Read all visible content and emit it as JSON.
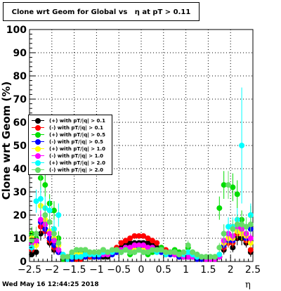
{
  "title": "Clone wrt Geom for Global vs   η at pT > 0.11",
  "footer": {
    "date": "Wed May 16 12:44:25 2018"
  },
  "chart_data": {
    "type": "scatter",
    "title": "Clone wrt Geom for Global vs   η at pT > 0.11",
    "xlabel": "η",
    "ylabel": "Clone wrt Geom (%)",
    "xlim": [
      -2.5,
      2.5
    ],
    "ylim": [
      0,
      100
    ],
    "x_ticks": [
      "−2.5",
      "−2",
      "−1.5",
      "−1",
      "−0.5",
      "0",
      "0.5",
      "1",
      "1.5",
      "2",
      "2.5"
    ],
    "y_ticks": [
      "0",
      "10",
      "20",
      "30",
      "40",
      "50",
      "60",
      "70",
      "80",
      "90",
      "100"
    ],
    "grid": true,
    "legend_position": "left",
    "series": [
      {
        "name": "(+) with pT/|q| > 0.1",
        "color": "#000000",
        "x": [
          -2.45,
          -2.35,
          -2.25,
          -2.15,
          -2.05,
          -1.95,
          -1.85,
          -1.75,
          -1.65,
          -1.55,
          -1.45,
          -1.35,
          -1.25,
          -1.15,
          -1.05,
          -0.95,
          -0.85,
          -0.75,
          -0.65,
          -0.55,
          -0.45,
          -0.35,
          -0.25,
          -0.15,
          -0.05,
          0.05,
          0.15,
          0.25,
          0.35,
          0.45,
          0.55,
          0.65,
          0.75,
          0.85,
          0.95,
          1.05,
          1.15,
          1.25,
          1.35,
          1.45,
          1.55,
          1.65,
          1.75,
          1.85,
          1.95,
          2.05,
          2.15,
          2.25,
          2.35,
          2.45
        ],
        "y": [
          3,
          4,
          12,
          14,
          8,
          5,
          4,
          1,
          1,
          1,
          1,
          1,
          2,
          2,
          2,
          2,
          2,
          2,
          3,
          4,
          6,
          7,
          8,
          8,
          8,
          8,
          8,
          7,
          6,
          5,
          4,
          3,
          3,
          2,
          2,
          2,
          2,
          1,
          1,
          1,
          1,
          1,
          2,
          5,
          8,
          6,
          10,
          10,
          8,
          4
        ],
        "err": [
          1,
          2,
          3,
          3,
          2,
          2,
          1,
          1,
          1,
          1,
          1,
          1,
          1,
          1,
          1,
          1,
          1,
          1,
          1,
          1,
          1,
          1,
          1,
          1,
          1,
          1,
          1,
          1,
          1,
          1,
          1,
          1,
          1,
          1,
          1,
          1,
          1,
          1,
          1,
          1,
          1,
          1,
          1,
          2,
          2,
          2,
          3,
          3,
          2,
          2
        ]
      },
      {
        "name": "(-) with pT/|q| > 0.1",
        "color": "#ff0000",
        "x": [
          -2.45,
          -2.35,
          -2.25,
          -2.15,
          -2.05,
          -1.95,
          -1.85,
          -1.75,
          -1.65,
          -1.55,
          -1.45,
          -1.35,
          -1.25,
          -1.15,
          -1.05,
          -0.95,
          -0.85,
          -0.75,
          -0.65,
          -0.55,
          -0.45,
          -0.35,
          -0.25,
          -0.15,
          -0.05,
          0.05,
          0.15,
          0.25,
          0.35,
          0.45,
          0.55,
          0.65,
          0.75,
          0.85,
          0.95,
          1.05,
          1.15,
          1.25,
          1.35,
          1.45,
          1.55,
          1.65,
          1.75,
          1.85,
          1.95,
          2.05,
          2.15,
          2.25,
          2.35,
          2.45
        ],
        "y": [
          5,
          8,
          15,
          13,
          9,
          6,
          4,
          2,
          1,
          1,
          1,
          1,
          2,
          2,
          2,
          2,
          3,
          3,
          4,
          6,
          8,
          9,
          10,
          11,
          11,
          11,
          10,
          9,
          8,
          6,
          5,
          4,
          3,
          2,
          2,
          2,
          2,
          1,
          1,
          1,
          1,
          1,
          2,
          6,
          8,
          8,
          12,
          12,
          9,
          5
        ],
        "err": [
          1,
          2,
          3,
          3,
          2,
          2,
          1,
          1,
          1,
          1,
          1,
          1,
          1,
          1,
          1,
          1,
          1,
          1,
          1,
          1,
          1,
          1,
          1,
          1,
          1,
          1,
          1,
          1,
          1,
          1,
          1,
          1,
          1,
          1,
          1,
          1,
          1,
          1,
          1,
          1,
          1,
          1,
          1,
          2,
          2,
          2,
          3,
          3,
          2,
          2
        ]
      },
      {
        "name": "(+) with pT/|q| > 0.5",
        "color": "#00dd00",
        "x": [
          -2.45,
          -2.35,
          -2.25,
          -2.15,
          -2.05,
          -1.95,
          -1.85,
          -1.75,
          -1.65,
          -1.55,
          -1.45,
          -1.35,
          -1.25,
          -1.15,
          -1.05,
          -0.95,
          -0.85,
          -0.75,
          -0.65,
          -0.55,
          -0.45,
          -0.35,
          -0.25,
          -0.15,
          -0.05,
          0.05,
          0.15,
          0.25,
          0.35,
          0.45,
          0.55,
          0.65,
          0.75,
          0.85,
          0.95,
          1.05,
          1.15,
          1.25,
          1.35,
          1.45,
          1.55,
          1.65,
          1.75,
          1.85,
          1.95,
          2.05,
          2.15,
          2.25,
          2.35,
          2.45
        ],
        "y": [
          12,
          10,
          36,
          33,
          25,
          22,
          10,
          1,
          2,
          3,
          5,
          4,
          5,
          4,
          3,
          4,
          5,
          3,
          4,
          5,
          4,
          5,
          3,
          4,
          5,
          4,
          3,
          4,
          5,
          6,
          3,
          4,
          5,
          4,
          3,
          6,
          4,
          3,
          2,
          2,
          2,
          2,
          23,
          33,
          10,
          32,
          29,
          18,
          12,
          20
        ],
        "err": [
          3,
          3,
          5,
          5,
          4,
          4,
          3,
          1,
          1,
          1,
          1,
          1,
          1,
          1,
          1,
          1,
          1,
          1,
          1,
          1,
          1,
          1,
          1,
          1,
          1,
          1,
          1,
          1,
          1,
          1,
          1,
          1,
          1,
          1,
          1,
          2,
          1,
          1,
          1,
          1,
          1,
          1,
          5,
          6,
          3,
          6,
          6,
          4,
          3,
          4
        ]
      },
      {
        "name": "(-) with pT/|q| > 0.5",
        "color": "#0000ff",
        "x": [
          -2.45,
          -2.35,
          -2.25,
          -2.15,
          -2.05,
          -1.95,
          -1.85,
          -1.75,
          -1.65,
          -1.55,
          -1.45,
          -1.35,
          -1.25,
          -1.15,
          -1.05,
          -0.95,
          -0.85,
          -0.75,
          -0.65,
          -0.55,
          -0.45,
          -0.35,
          -0.25,
          -0.15,
          -0.05,
          0.05,
          0.15,
          0.25,
          0.35,
          0.45,
          0.55,
          0.65,
          0.75,
          0.85,
          0.95,
          1.05,
          1.15,
          1.25,
          1.35,
          1.45,
          1.55,
          1.65,
          1.75,
          1.85,
          1.95,
          2.05,
          2.15,
          2.25,
          2.35,
          2.45
        ],
        "y": [
          6,
          8,
          17,
          14,
          10,
          7,
          4,
          2,
          1,
          1,
          2,
          2,
          2,
          3,
          2,
          2,
          3,
          3,
          3,
          4,
          5,
          5,
          6,
          6,
          6,
          6,
          6,
          5,
          5,
          4,
          3,
          3,
          3,
          2,
          2,
          2,
          2,
          1,
          1,
          1,
          1,
          1,
          2,
          7,
          9,
          9,
          13,
          14,
          10,
          14
        ],
        "err": [
          2,
          2,
          3,
          3,
          2,
          2,
          1,
          1,
          1,
          1,
          1,
          1,
          1,
          1,
          1,
          1,
          1,
          1,
          1,
          1,
          1,
          1,
          1,
          1,
          1,
          1,
          1,
          1,
          1,
          1,
          1,
          1,
          1,
          1,
          1,
          1,
          1,
          1,
          1,
          1,
          1,
          1,
          1,
          2,
          2,
          2,
          3,
          3,
          2,
          3
        ]
      },
      {
        "name": "(+) with pT/|q| > 1.0",
        "color": "#ffff00",
        "x": [
          -2.45,
          -2.35,
          -2.25,
          -2.15,
          -2.05,
          -1.95,
          -1.85,
          -1.75,
          -1.65,
          -1.55,
          -1.45,
          -1.35,
          -1.25,
          -1.15,
          -1.05,
          -0.95,
          -0.85,
          -0.75,
          -0.65,
          -0.55,
          -0.45,
          -0.35,
          -0.25,
          -0.15,
          -0.05,
          0.05,
          0.15,
          0.25,
          0.35,
          0.45,
          0.55,
          0.65,
          0.75,
          0.85,
          0.95,
          1.05,
          1.15,
          1.25,
          1.35,
          1.45,
          1.55,
          1.65,
          1.75,
          1.85,
          1.95,
          2.05,
          2.15,
          2.25,
          2.35,
          2.45
        ],
        "y": [
          10,
          7,
          24,
          18,
          13,
          10,
          7,
          2,
          2,
          2,
          3,
          3,
          3,
          3,
          3,
          3,
          4,
          3,
          4,
          5,
          5,
          5,
          5,
          5,
          5,
          5,
          5,
          5,
          5,
          5,
          4,
          4,
          4,
          3,
          3,
          3,
          3,
          2,
          2,
          2,
          2,
          2,
          3,
          8,
          10,
          10,
          13,
          12,
          11,
          8
        ],
        "err": [
          3,
          2,
          4,
          4,
          3,
          3,
          2,
          1,
          1,
          1,
          1,
          1,
          1,
          1,
          1,
          1,
          1,
          1,
          1,
          1,
          1,
          1,
          1,
          1,
          1,
          1,
          1,
          1,
          1,
          1,
          1,
          1,
          1,
          1,
          1,
          1,
          1,
          1,
          1,
          1,
          1,
          1,
          1,
          2,
          3,
          3,
          3,
          3,
          3,
          2
        ]
      },
      {
        "name": "(-) with pT/|q| > 1.0",
        "color": "#ff00ff",
        "x": [
          -2.45,
          -2.35,
          -2.25,
          -2.15,
          -2.05,
          -1.95,
          -1.85,
          -1.75,
          -1.65,
          -1.55,
          -1.45,
          -1.35,
          -1.25,
          -1.15,
          -1.05,
          -0.95,
          -0.85,
          -0.75,
          -0.65,
          -0.55,
          -0.45,
          -0.35,
          -0.25,
          -0.15,
          -0.05,
          0.05,
          0.15,
          0.25,
          0.35,
          0.45,
          0.55,
          0.65,
          0.75,
          0.85,
          0.95,
          1.05,
          1.15,
          1.25,
          1.35,
          1.45,
          1.55,
          1.65,
          1.75,
          1.85,
          1.95,
          2.05,
          2.15,
          2.25,
          2.35,
          2.45
        ],
        "y": [
          8,
          9,
          18,
          16,
          12,
          9,
          5,
          2,
          2,
          2,
          2,
          2,
          3,
          3,
          3,
          3,
          3,
          3,
          4,
          5,
          5,
          6,
          6,
          7,
          7,
          7,
          6,
          6,
          5,
          5,
          4,
          4,
          3,
          3,
          2,
          2,
          2,
          2,
          2,
          1,
          1,
          1,
          2,
          9,
          12,
          11,
          15,
          14,
          12,
          10
        ],
        "err": [
          2,
          2,
          4,
          3,
          3,
          2,
          2,
          1,
          1,
          1,
          1,
          1,
          1,
          1,
          1,
          1,
          1,
          1,
          1,
          1,
          1,
          1,
          1,
          1,
          1,
          1,
          1,
          1,
          1,
          1,
          1,
          1,
          1,
          1,
          1,
          1,
          1,
          1,
          1,
          1,
          1,
          1,
          1,
          2,
          3,
          3,
          3,
          3,
          3,
          2
        ]
      },
      {
        "name": "(+) with pT/|q| > 2.0",
        "color": "#00ffff",
        "x": [
          -2.45,
          -2.35,
          -2.25,
          -2.15,
          -2.05,
          -1.95,
          -1.85,
          -1.75,
          -1.65,
          -1.55,
          -1.45,
          -1.35,
          -1.25,
          -1.15,
          -1.05,
          -0.95,
          -0.85,
          -0.75,
          -0.65,
          -0.55,
          -0.45,
          -0.35,
          -0.25,
          -0.15,
          -0.05,
          0.05,
          0.15,
          0.25,
          0.35,
          0.45,
          0.55,
          0.65,
          0.75,
          0.85,
          0.95,
          1.05,
          1.15,
          1.25,
          1.35,
          1.45,
          1.55,
          1.65,
          1.75,
          1.85,
          1.95,
          2.05,
          2.15,
          2.25,
          2.35,
          2.45
        ],
        "y": [
          6,
          26,
          27,
          23,
          22,
          14,
          20,
          3,
          1,
          2,
          2,
          2,
          3,
          3,
          3,
          3,
          4,
          4,
          4,
          5,
          4,
          5,
          4,
          4,
          5,
          4,
          4,
          5,
          4,
          5,
          3,
          4,
          4,
          3,
          3,
          4,
          3,
          2,
          2,
          2,
          2,
          2,
          3,
          12,
          15,
          15,
          18,
          50,
          15,
          20
        ],
        "err": [
          2,
          5,
          5,
          5,
          5,
          4,
          5,
          1,
          1,
          1,
          1,
          1,
          1,
          1,
          1,
          1,
          1,
          1,
          1,
          1,
          1,
          1,
          1,
          1,
          1,
          1,
          1,
          1,
          1,
          1,
          1,
          1,
          1,
          1,
          1,
          1,
          1,
          1,
          1,
          1,
          1,
          1,
          1,
          4,
          4,
          4,
          5,
          25,
          4,
          5
        ]
      },
      {
        "name": "(-) with pT/|q| > 2.0",
        "color": "#66dd66",
        "x": [
          -2.45,
          -2.35,
          -2.25,
          -2.15,
          -2.05,
          -1.95,
          -1.85,
          -1.75,
          -1.65,
          -1.55,
          -1.45,
          -1.35,
          -1.25,
          -1.15,
          -1.05,
          -0.95,
          -0.85,
          -0.75,
          -0.65,
          -0.55,
          -0.45,
          -0.35,
          -0.25,
          -0.15,
          -0.05,
          0.05,
          0.15,
          0.25,
          0.35,
          0.45,
          0.55,
          0.65,
          0.75,
          0.85,
          0.95,
          1.05,
          1.15,
          1.25,
          1.35,
          1.45,
          1.55,
          1.65,
          1.75,
          1.85,
          1.95,
          2.05,
          2.15,
          2.25,
          2.35,
          2.45
        ],
        "y": [
          9,
          12,
          40,
          20,
          17,
          12,
          8,
          2,
          2,
          4,
          5,
          5,
          5,
          4,
          4,
          4,
          5,
          4,
          5,
          5,
          4,
          5,
          4,
          4,
          5,
          4,
          4,
          5,
          5,
          5,
          4,
          4,
          4,
          3,
          4,
          7,
          4,
          3,
          2,
          2,
          2,
          2,
          6,
          12,
          33,
          14,
          16,
          16,
          15,
          16
        ],
        "err": [
          3,
          3,
          8,
          5,
          4,
          3,
          3,
          1,
          1,
          1,
          1,
          1,
          1,
          1,
          1,
          1,
          1,
          1,
          1,
          1,
          1,
          1,
          1,
          1,
          1,
          1,
          1,
          1,
          1,
          1,
          1,
          1,
          1,
          1,
          1,
          2,
          1,
          1,
          1,
          1,
          1,
          1,
          2,
          4,
          6,
          4,
          4,
          4,
          4,
          4
        ]
      }
    ]
  }
}
